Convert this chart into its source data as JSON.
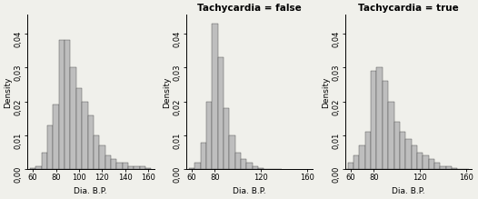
{
  "title1": "",
  "title2": "Tachycardia = false",
  "title3": "Tachycardia = true",
  "xlabel": "Dia. B.P.",
  "ylabel": "Density",
  "bar_color": "#bebebe",
  "bar_edge_color": "#444444",
  "bar_edge_width": 0.3,
  "xlim": [
    55,
    165
  ],
  "ylim": [
    0,
    0.0455
  ],
  "yticks": [
    0.0,
    0.01,
    0.02,
    0.03,
    0.04
  ],
  "xticks1": [
    60,
    80,
    100,
    120,
    140,
    160
  ],
  "xticks23": [
    60,
    80,
    120,
    160
  ],
  "bin_width": 5,
  "background_color": "#f0f0eb",
  "title_fontsize": 7.5,
  "axis_fontsize": 6.5,
  "tick_fontsize": 6,
  "bins1_centers": [
    60,
    65,
    70,
    75,
    80,
    85,
    90,
    95,
    100,
    105,
    110,
    115,
    120,
    125,
    130,
    135,
    140,
    145,
    150,
    155,
    160
  ],
  "bins1_heights": [
    0.0005,
    0.001,
    0.005,
    0.013,
    0.019,
    0.038,
    0.038,
    0.03,
    0.024,
    0.02,
    0.016,
    0.01,
    0.007,
    0.004,
    0.003,
    0.002,
    0.002,
    0.001,
    0.001,
    0.001,
    0.0005
  ],
  "bins2_centers": [
    60,
    65,
    70,
    75,
    80,
    85,
    90,
    95,
    100,
    105,
    110,
    115,
    120,
    125,
    130,
    135
  ],
  "bins2_heights": [
    0.0005,
    0.002,
    0.008,
    0.02,
    0.043,
    0.033,
    0.018,
    0.01,
    0.005,
    0.003,
    0.002,
    0.001,
    0.0005,
    0.0002,
    0.0001,
    5e-05
  ],
  "bins3_centers": [
    55,
    60,
    65,
    70,
    75,
    80,
    85,
    90,
    95,
    100,
    105,
    110,
    115,
    120,
    125,
    130,
    135,
    140,
    145,
    150,
    155,
    160
  ],
  "bins3_heights": [
    0.0001,
    0.002,
    0.004,
    0.007,
    0.011,
    0.029,
    0.03,
    0.026,
    0.02,
    0.014,
    0.011,
    0.009,
    0.007,
    0.005,
    0.004,
    0.003,
    0.002,
    0.001,
    0.001,
    0.0005,
    0.0002,
    0.0001
  ]
}
